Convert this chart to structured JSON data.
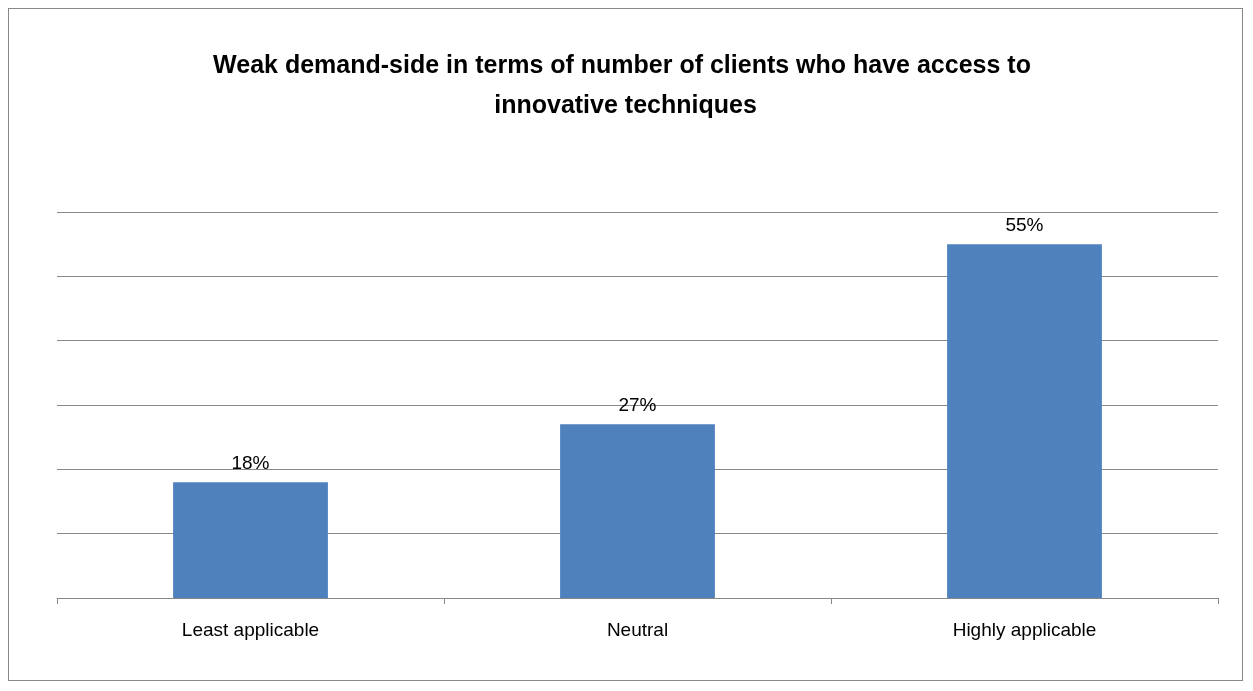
{
  "chart_data": {
    "type": "bar",
    "title": "Weak demand-side in terms of number of clients who have access to innovative techniques",
    "categories": [
      "Least applicable",
      "Neutral",
      "Highly applicable"
    ],
    "values": [
      18,
      27,
      55
    ],
    "value_labels": [
      "18%",
      "27%",
      "55%"
    ],
    "color": "#4f81bd",
    "ylim": [
      0,
      60
    ],
    "yticks": [
      {
        "value": 0,
        "label": null
      },
      {
        "value": 10,
        "label": null
      },
      {
        "value": 20,
        "label": null
      },
      {
        "value": 30,
        "label": null
      },
      {
        "value": 40,
        "label": null
      },
      {
        "value": 50,
        "label": null
      },
      {
        "value": 60,
        "label": null
      }
    ],
    "grid": "y",
    "tick_labels": "x"
  }
}
